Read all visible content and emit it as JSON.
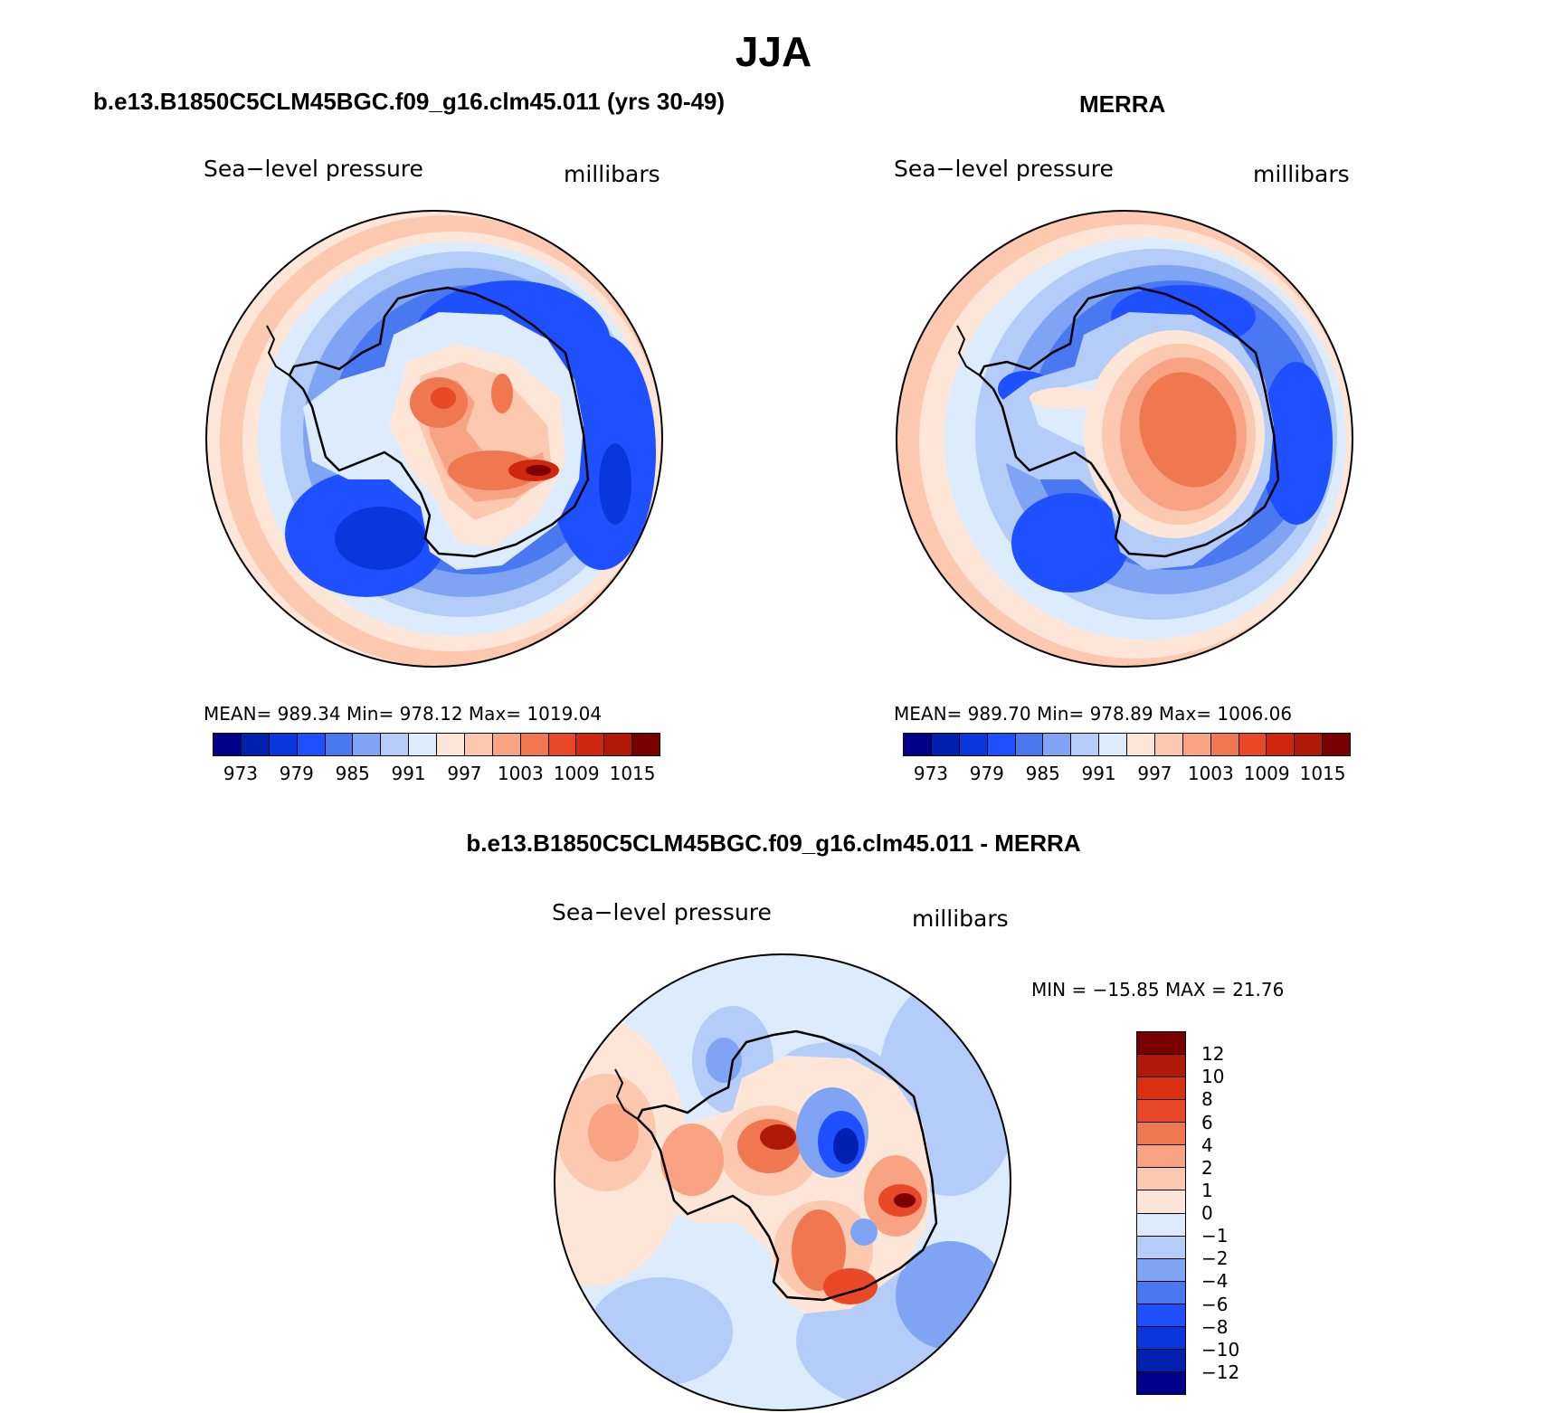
{
  "title": "JJA",
  "panels": [
    {
      "title": "b.e13.B1850C5CLM45BGC.f09_g16.clm45.011 (yrs 30-49)",
      "variable": "Sea−level pressure",
      "units": "millibars",
      "stats": "MEAN= 989.34   Min= 978.12   Max= 1019.04",
      "colorbar_ticks": [
        "973",
        "979",
        "985",
        "991",
        "997",
        "1003",
        "1009",
        "1015"
      ]
    },
    {
      "title": "MERRA",
      "variable": "Sea−level pressure",
      "units": "millibars",
      "stats": "MEAN= 989.70   Min= 978.89   Max= 1006.06",
      "colorbar_ticks": [
        "973",
        "979",
        "985",
        "991",
        "997",
        "1003",
        "1009",
        "1015"
      ]
    },
    {
      "title": "b.e13.B1850C5CLM45BGC.f09_g16.clm45.011 - MERRA",
      "variable": "Sea−level pressure",
      "units": "millibars",
      "stats": "MIN = −15.85 MAX =  21.76",
      "colorbar_ticks": [
        "12",
        "10",
        "8",
        "6",
        "4",
        "2",
        "1",
        "0",
        "−1",
        "−2",
        "−4",
        "−6",
        "−8",
        "−10",
        "−12"
      ]
    }
  ],
  "colors": {
    "abs_scale": [
      "#00008b",
      "#0020b0",
      "#0838dc",
      "#1e50ff",
      "#4a78f0",
      "#80a4f4",
      "#b4ccf8",
      "#dcecfc",
      "#fde6d8",
      "#fcc8b0",
      "#f8a484",
      "#f07850",
      "#e84828",
      "#d02810",
      "#b01808",
      "#7a0000"
    ],
    "diff_scale": [
      "#7a0000",
      "#b01808",
      "#d83010",
      "#e84828",
      "#f07850",
      "#f8a484",
      "#fcc8b0",
      "#fde6d8",
      "#dcecfc",
      "#b4ccf8",
      "#80a4f4",
      "#4a78f0",
      "#1e50ff",
      "#0838dc",
      "#0020b0",
      "#00008b"
    ]
  }
}
